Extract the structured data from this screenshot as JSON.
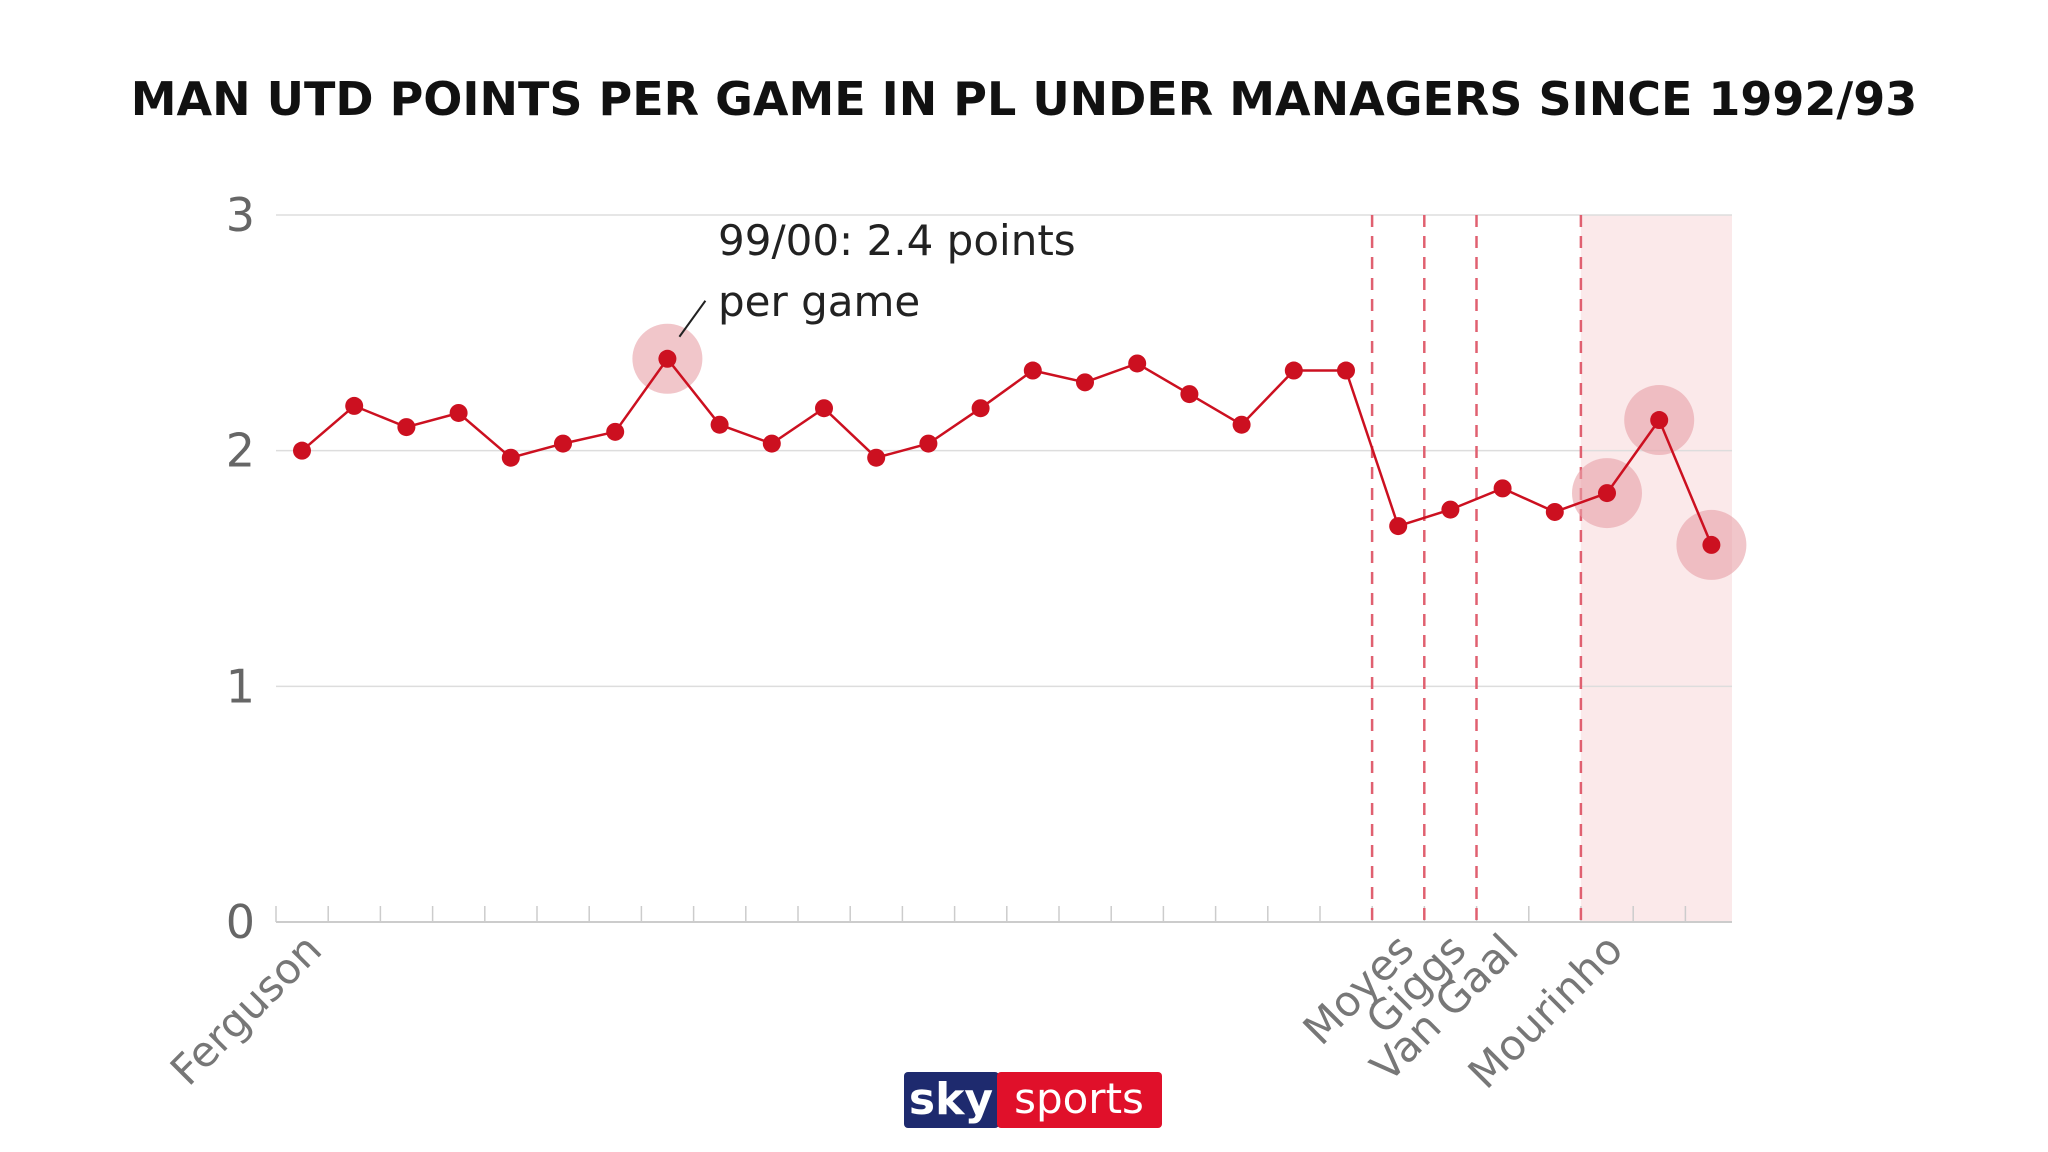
{
  "chart_data": {
    "type": "line",
    "title": "MAN UTD POINTS PER GAME IN PL UNDER MANAGERS SINCE 1992/93",
    "ylim": [
      0,
      3
    ],
    "y_ticks": [
      0,
      1,
      2,
      3
    ],
    "grid": true,
    "series": [
      {
        "values": [
          2.0,
          2.19,
          2.1,
          2.16,
          1.97,
          2.03,
          2.08,
          2.39,
          2.11,
          2.03,
          2.18,
          1.97,
          2.03,
          2.18,
          2.34,
          2.29,
          2.37,
          2.24,
          2.11,
          2.34,
          2.34,
          1.68,
          1.75,
          1.84,
          1.74,
          1.82,
          2.13,
          1.6
        ]
      }
    ],
    "highlighted_points": [
      7,
      25,
      26,
      27
    ],
    "managers": [
      {
        "name": "Ferguson",
        "start_index": 0
      },
      {
        "name": "Moyes",
        "start_index": 21
      },
      {
        "name": "Giggs",
        "start_index": 22
      },
      {
        "name": "Van Gaal",
        "start_index": 23
      },
      {
        "name": "Mourinho",
        "start_index": 25
      }
    ],
    "shaded_manager": "Mourinho",
    "annotation": {
      "point_index": 7,
      "line1": "99/00: 2.4 points",
      "line2": "per game"
    },
    "colors": {
      "line": "#cc1020",
      "halo": "#e8a0a6",
      "shade": "#fbe9ea",
      "divider": "#e06070",
      "grid": "#dddddd",
      "axis": "#cccccc"
    }
  },
  "logo": {
    "part1": "sky",
    "part2": "sports",
    "colors": {
      "dark": "#1e2a6e",
      "red": "#e0102a"
    }
  }
}
